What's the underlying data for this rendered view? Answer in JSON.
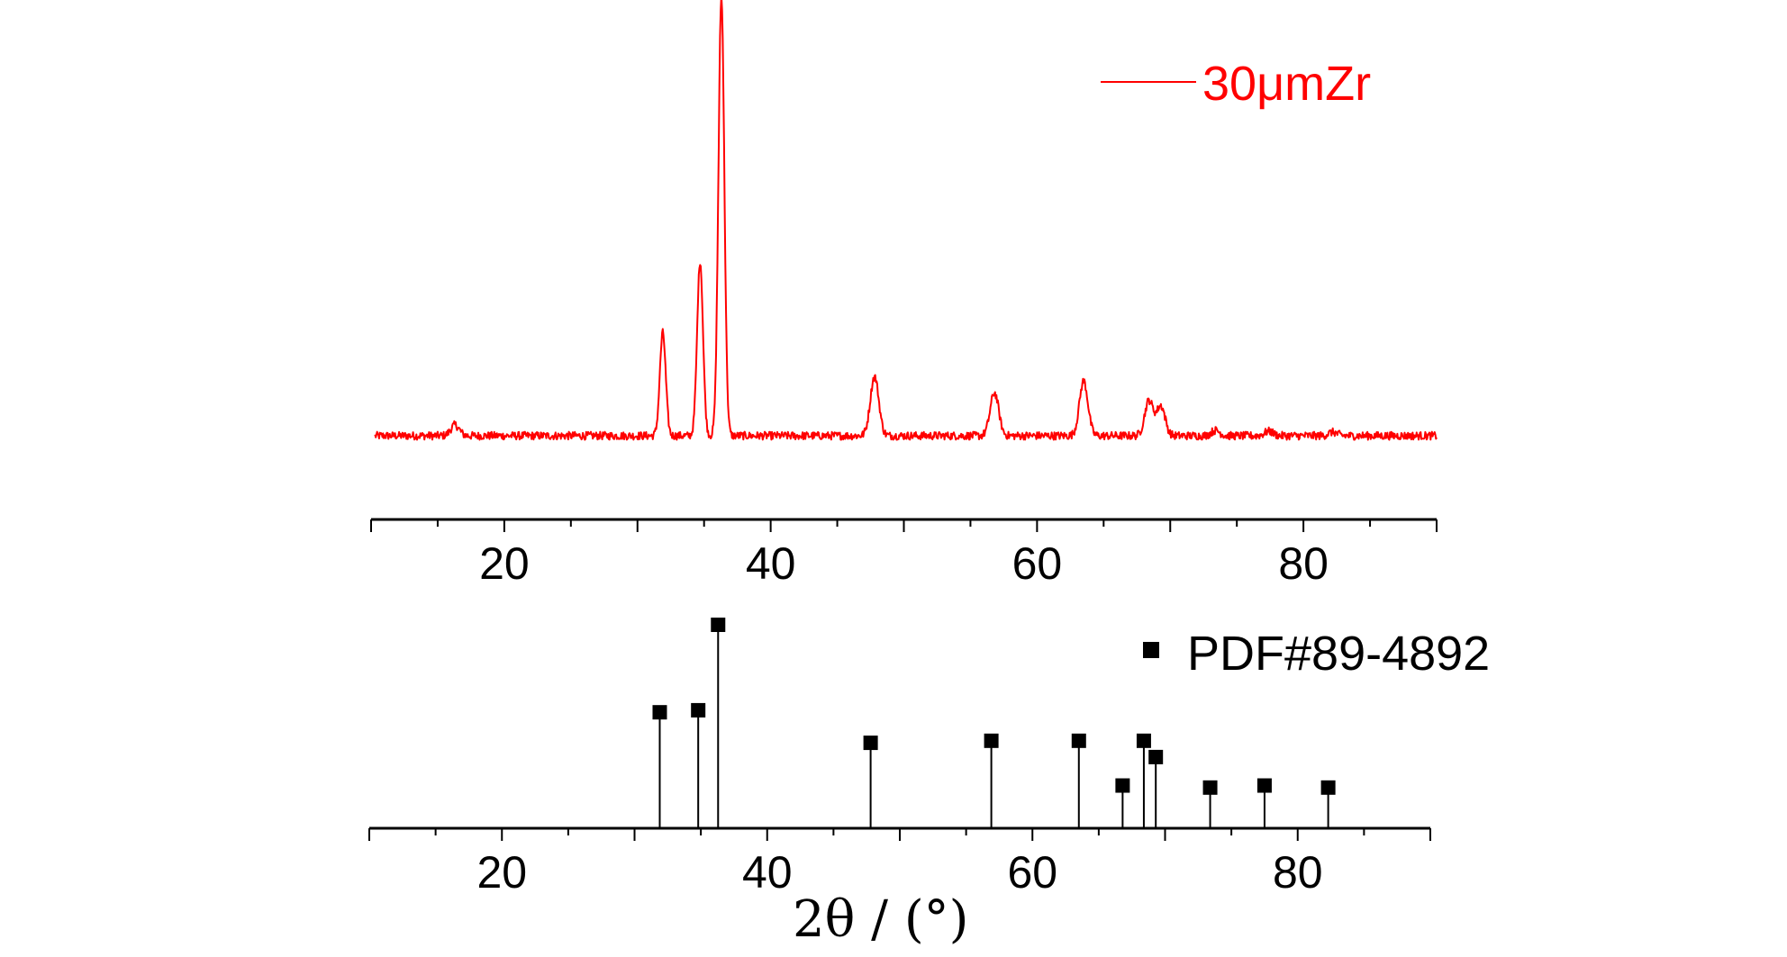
{
  "chart_data": [
    {
      "type": "line",
      "title": "",
      "xlabel": "",
      "ylabel": "",
      "xlim": [
        10,
        90
      ],
      "xticks": [
        20,
        40,
        60,
        80
      ],
      "grid": false,
      "legend_position": "top-right",
      "y_axis_shown": false,
      "series": [
        {
          "name": "30μmZr",
          "color": "#ff0000",
          "baseline": 1.0,
          "peaks": [
            {
              "x": 16.3,
              "y": 1.2
            },
            {
              "x": 31.9,
              "y": 11.5
            },
            {
              "x": 34.7,
              "y": 19.5
            },
            {
              "x": 36.3,
              "y": 49.0
            },
            {
              "x": 47.8,
              "y": 6.6
            },
            {
              "x": 56.8,
              "y": 4.8
            },
            {
              "x": 63.5,
              "y": 6.1
            },
            {
              "x": 68.4,
              "y": 3.9
            },
            {
              "x": 69.3,
              "y": 3.3
            },
            {
              "x": 73.4,
              "y": 0.6
            },
            {
              "x": 77.4,
              "y": 0.5
            },
            {
              "x": 82.2,
              "y": 0.4
            }
          ]
        }
      ]
    },
    {
      "type": "stem",
      "title": "",
      "xlabel": "2θ / (°)",
      "ylabel": "",
      "xlim": [
        10,
        90
      ],
      "xticks": [
        20,
        40,
        60,
        80
      ],
      "grid": false,
      "legend_position": "top-right",
      "y_axis_shown": false,
      "series": [
        {
          "name": "PDF#89-4892",
          "color": "#000000",
          "marker": "square",
          "x": [
            31.9,
            34.8,
            36.3,
            47.8,
            56.9,
            63.5,
            66.8,
            68.4,
            69.3,
            73.4,
            77.5,
            82.3
          ],
          "y": [
            57,
            58,
            100,
            42,
            43,
            43,
            21,
            43,
            35,
            20,
            21,
            20
          ]
        }
      ]
    }
  ]
}
